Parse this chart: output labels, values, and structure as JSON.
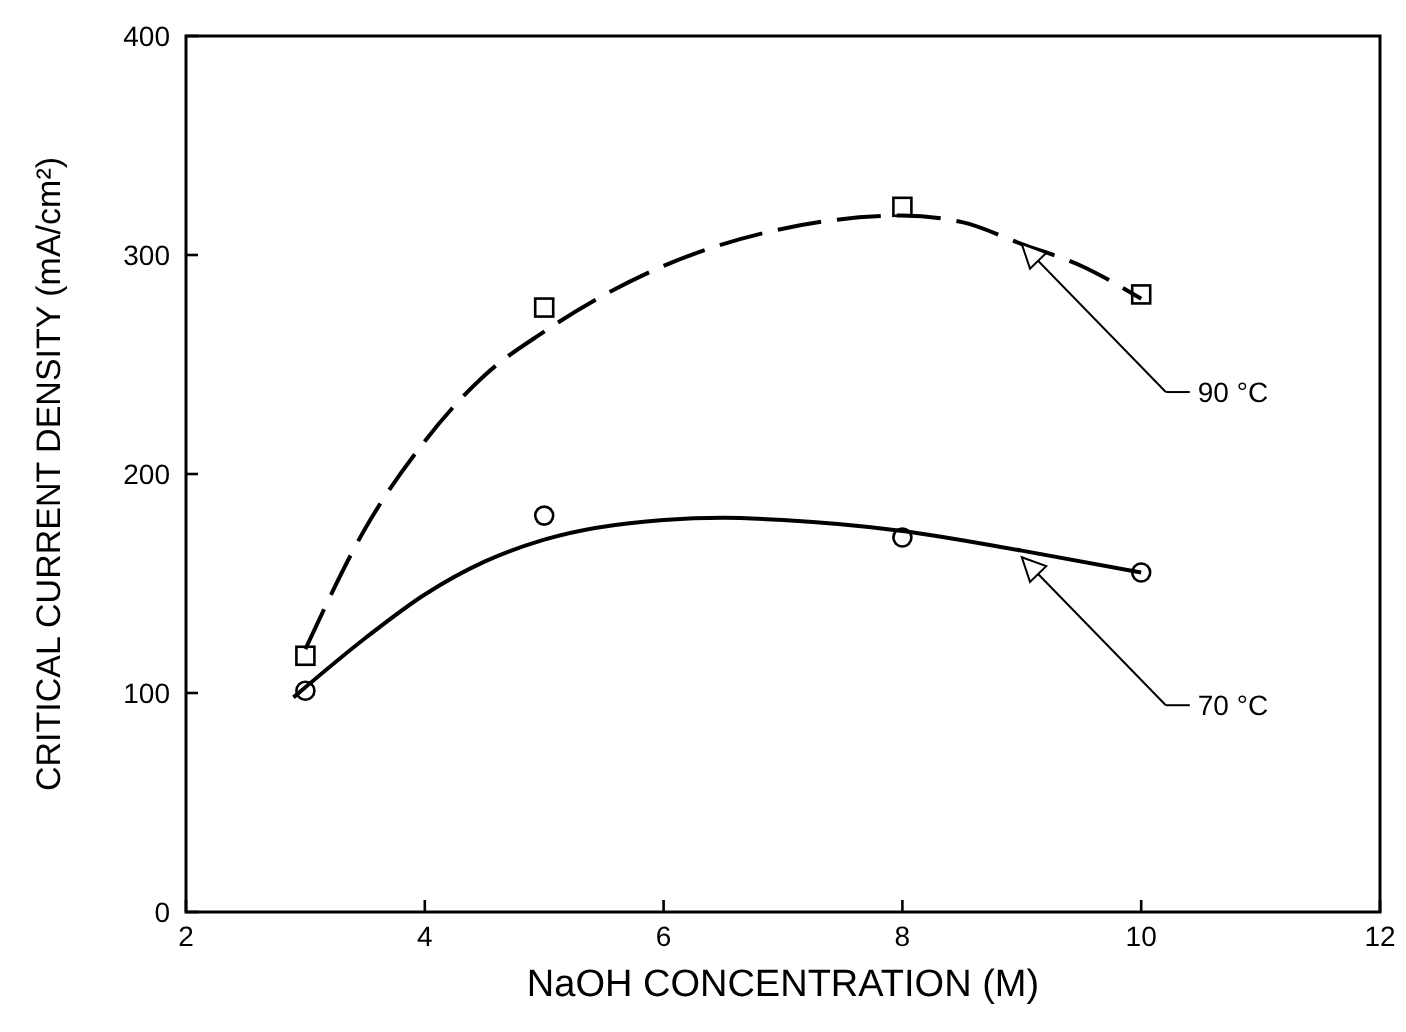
{
  "chart_data": {
    "type": "scatter",
    "xlabel": "NaOH CONCENTRATION (M)",
    "ylabel": "CRITICAL CURRENT DENSITY (mA/cm²)",
    "xlim": [
      2,
      12
    ],
    "ylim": [
      0,
      400
    ],
    "xticks": [
      2,
      4,
      6,
      8,
      10,
      12
    ],
    "yticks": [
      0,
      100,
      200,
      300,
      400
    ],
    "grid": false,
    "series": [
      {
        "marker": "square",
        "color": "#000000",
        "x": [
          3,
          5,
          8,
          10
        ],
        "values": [
          117,
          276,
          322,
          282
        ]
      },
      {
        "marker": "circle",
        "color": "#000000",
        "x": [
          3,
          5,
          8,
          10
        ],
        "values": [
          101,
          181,
          171,
          155
        ]
      },
      {
        "type": "line",
        "line_style": "dashed",
        "color": "#000000",
        "x": [
          3,
          3.5,
          4,
          4.5,
          5,
          6,
          7,
          8,
          8.5,
          9,
          9.5,
          10
        ],
        "values": [
          120,
          175,
          215,
          245,
          265,
          295,
          312,
          318,
          315,
          305,
          295,
          280
        ]
      },
      {
        "type": "line",
        "line_style": "solid",
        "color": "#000000",
        "x": [
          2.9,
          3.5,
          4,
          4.5,
          5,
          6,
          6.5,
          7,
          8,
          9,
          10
        ],
        "values": [
          98,
          125,
          145,
          160,
          170,
          179,
          180,
          179,
          174,
          165,
          155
        ]
      }
    ],
    "annotations": [
      {
        "text": "90 °C",
        "x": 9,
        "y": 305
      },
      {
        "text": "70 °C",
        "x": 9,
        "y": 162
      }
    ]
  }
}
